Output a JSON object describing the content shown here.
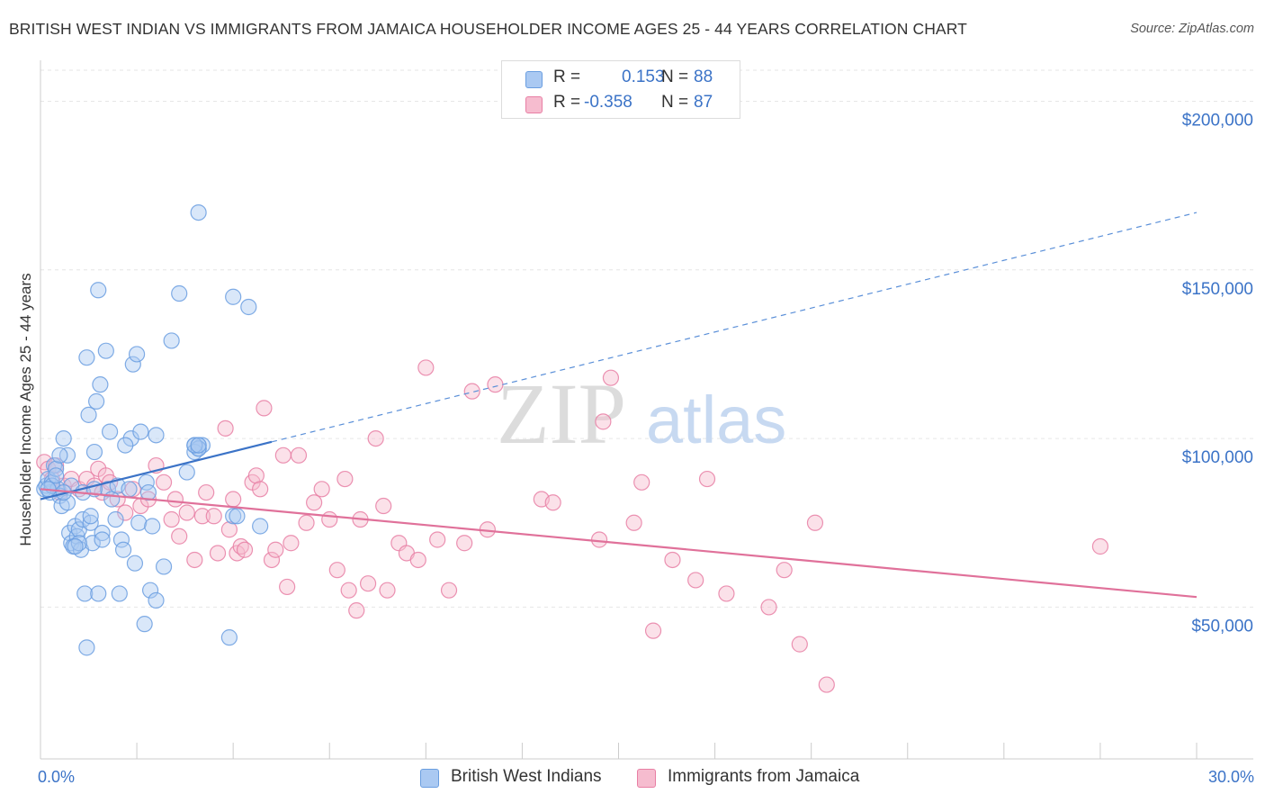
{
  "title": "BRITISH WEST INDIAN VS IMMIGRANTS FROM JAMAICA HOUSEHOLDER INCOME AGES 25 - 44 YEARS CORRELATION CHART",
  "source": "Source: ZipAtlas.com",
  "watermark": {
    "zip": "ZIP",
    "atlas": "atlas"
  },
  "legend": {
    "r_label": "R =",
    "n_label": "N =",
    "series": [
      {
        "name": "British West Indians",
        "r": "0.153",
        "n": "88",
        "color": "#6a9ee0",
        "fill": "#aac9f2"
      },
      {
        "name": "Immigrants from Jamaica",
        "r": "-0.358",
        "n": "87",
        "color": "#e87fa4",
        "fill": "#f6bccf"
      }
    ]
  },
  "axes": {
    "x_min_label": "0.0%",
    "x_max_label": "30.0%",
    "ylabel": "Householder Income Ages 25 - 44 years"
  },
  "chart_data": {
    "type": "scatter",
    "title": "BRITISH WEST INDIAN VS IMMIGRANTS FROM JAMAICA HOUSEHOLDER INCOME AGES 25 - 44 YEARS CORRELATION CHART",
    "xlabel": "",
    "ylabel": "Householder Income Ages 25 - 44 years",
    "xlim": [
      0,
      30
    ],
    "ylim": [
      5000,
      210000
    ],
    "x_unit": "%",
    "y_ticks": [
      50000,
      100000,
      150000,
      200000
    ],
    "y_tick_labels": [
      "$50,000",
      "$100,000",
      "$150,000",
      "$200,000"
    ],
    "grid": true,
    "legend_position": "top-center",
    "series": [
      {
        "name": "British West Indians",
        "color": "#6a9ee0",
        "trend": {
          "x": [
            0,
            6.0
          ],
          "y": [
            82000,
            99000
          ],
          "extension_x": [
            6.0,
            30.0
          ],
          "extension_y": [
            99000,
            167000
          ]
        },
        "points": [
          [
            0.1,
            85000
          ],
          [
            0.15,
            86000
          ],
          [
            0.2,
            88000
          ],
          [
            0.25,
            84000
          ],
          [
            0.3,
            87000
          ],
          [
            0.35,
            92000
          ],
          [
            0.4,
            91000
          ],
          [
            0.45,
            85000
          ],
          [
            0.5,
            83000
          ],
          [
            0.55,
            80000
          ],
          [
            0.6,
            100000
          ],
          [
            0.7,
            95000
          ],
          [
            0.75,
            72000
          ],
          [
            0.8,
            69000
          ],
          [
            0.85,
            68000
          ],
          [
            0.9,
            74000
          ],
          [
            0.95,
            71000
          ],
          [
            1.0,
            73000
          ],
          [
            1.05,
            67000
          ],
          [
            1.1,
            76000
          ],
          [
            1.15,
            54000
          ],
          [
            1.2,
            124000
          ],
          [
            1.25,
            107000
          ],
          [
            1.3,
            75000
          ],
          [
            1.35,
            69000
          ],
          [
            1.4,
            96000
          ],
          [
            1.45,
            111000
          ],
          [
            1.5,
            144000
          ],
          [
            1.55,
            116000
          ],
          [
            1.6,
            72000
          ],
          [
            1.7,
            126000
          ],
          [
            1.75,
            85000
          ],
          [
            1.8,
            102000
          ],
          [
            1.85,
            82000
          ],
          [
            1.95,
            76000
          ],
          [
            2.0,
            86000
          ],
          [
            2.05,
            54000
          ],
          [
            2.1,
            70000
          ],
          [
            2.15,
            67000
          ],
          [
            2.3,
            85000
          ],
          [
            2.35,
            100000
          ],
          [
            2.4,
            122000
          ],
          [
            2.45,
            63000
          ],
          [
            2.5,
            125000
          ],
          [
            2.55,
            75000
          ],
          [
            2.6,
            102000
          ],
          [
            2.7,
            45000
          ],
          [
            2.75,
            87000
          ],
          [
            2.8,
            84000
          ],
          [
            2.85,
            55000
          ],
          [
            2.9,
            74000
          ],
          [
            3.0,
            52000
          ],
          [
            3.2,
            62000
          ],
          [
            3.4,
            129000
          ],
          [
            3.6,
            143000
          ],
          [
            3.0,
            101000
          ],
          [
            3.8,
            90000
          ],
          [
            4.1,
            98000
          ],
          [
            4.2,
            98000
          ],
          [
            4.1,
            167000
          ],
          [
            4.0,
            98000
          ],
          [
            4.1,
            97000
          ],
          [
            4.0,
            96000
          ],
          [
            4.1,
            97000
          ],
          [
            4.0,
            98000
          ],
          [
            4.1,
            98000
          ],
          [
            5.0,
            142000
          ],
          [
            4.9,
            41000
          ],
          [
            5.0,
            77000
          ],
          [
            5.1,
            77000
          ],
          [
            5.4,
            139000
          ],
          [
            5.7,
            74000
          ],
          [
            1.2,
            38000
          ],
          [
            0.5,
            95000
          ],
          [
            0.3,
            86000
          ],
          [
            0.8,
            86000
          ],
          [
            0.4,
            89000
          ],
          [
            1.0,
            69000
          ],
          [
            0.7,
            81000
          ],
          [
            0.9,
            68000
          ],
          [
            1.3,
            77000
          ],
          [
            1.6,
            70000
          ],
          [
            0.2,
            85000
          ],
          [
            0.6,
            84000
          ],
          [
            1.1,
            84000
          ],
          [
            1.4,
            85000
          ],
          [
            2.2,
            98000
          ],
          [
            1.5,
            54000
          ]
        ]
      },
      {
        "name": "Immigrants from Jamaica",
        "color": "#e87fa4",
        "trend": {
          "x": [
            0,
            30.0
          ],
          "y": [
            85000,
            53000
          ]
        },
        "points": [
          [
            0.1,
            93000
          ],
          [
            0.2,
            91000
          ],
          [
            0.3,
            88000
          ],
          [
            0.4,
            92000
          ],
          [
            0.5,
            84000
          ],
          [
            0.6,
            86000
          ],
          [
            0.8,
            88000
          ],
          [
            1.0,
            85000
          ],
          [
            1.2,
            88000
          ],
          [
            1.4,
            86000
          ],
          [
            1.5,
            91000
          ],
          [
            1.6,
            84000
          ],
          [
            1.7,
            89000
          ],
          [
            1.8,
            87000
          ],
          [
            2.0,
            82000
          ],
          [
            2.2,
            78000
          ],
          [
            2.4,
            85000
          ],
          [
            2.6,
            80000
          ],
          [
            2.8,
            82000
          ],
          [
            3.0,
            92000
          ],
          [
            3.2,
            87000
          ],
          [
            3.4,
            76000
          ],
          [
            3.5,
            82000
          ],
          [
            3.6,
            71000
          ],
          [
            3.8,
            78000
          ],
          [
            4.0,
            64000
          ],
          [
            4.2,
            77000
          ],
          [
            4.3,
            84000
          ],
          [
            4.5,
            77000
          ],
          [
            4.6,
            66000
          ],
          [
            4.8,
            103000
          ],
          [
            4.9,
            73000
          ],
          [
            5.0,
            82000
          ],
          [
            5.1,
            66000
          ],
          [
            5.2,
            68000
          ],
          [
            5.3,
            67000
          ],
          [
            5.5,
            87000
          ],
          [
            5.6,
            89000
          ],
          [
            5.7,
            85000
          ],
          [
            5.8,
            109000
          ],
          [
            6.0,
            64000
          ],
          [
            6.1,
            67000
          ],
          [
            6.3,
            95000
          ],
          [
            6.4,
            56000
          ],
          [
            6.5,
            69000
          ],
          [
            6.7,
            95000
          ],
          [
            6.9,
            75000
          ],
          [
            7.1,
            81000
          ],
          [
            7.3,
            85000
          ],
          [
            7.5,
            76000
          ],
          [
            7.7,
            61000
          ],
          [
            7.9,
            88000
          ],
          [
            8.0,
            55000
          ],
          [
            8.2,
            49000
          ],
          [
            8.3,
            76000
          ],
          [
            8.5,
            57000
          ],
          [
            8.7,
            100000
          ],
          [
            8.9,
            80000
          ],
          [
            9.0,
            55000
          ],
          [
            9.3,
            69000
          ],
          [
            9.5,
            66000
          ],
          [
            9.8,
            64000
          ],
          [
            10.0,
            121000
          ],
          [
            10.3,
            70000
          ],
          [
            10.6,
            55000
          ],
          [
            11.0,
            69000
          ],
          [
            11.2,
            114000
          ],
          [
            11.6,
            73000
          ],
          [
            11.8,
            116000
          ],
          [
            13.0,
            82000
          ],
          [
            13.3,
            81000
          ],
          [
            14.5,
            70000
          ],
          [
            14.6,
            105000
          ],
          [
            14.8,
            118000
          ],
          [
            15.4,
            75000
          ],
          [
            15.6,
            87000
          ],
          [
            15.9,
            43000
          ],
          [
            16.4,
            64000
          ],
          [
            17.0,
            58000
          ],
          [
            17.3,
            88000
          ],
          [
            17.8,
            54000
          ],
          [
            18.9,
            50000
          ],
          [
            19.3,
            61000
          ],
          [
            19.7,
            39000
          ],
          [
            20.1,
            75000
          ],
          [
            20.4,
            27000
          ],
          [
            27.5,
            68000
          ]
        ]
      }
    ]
  }
}
